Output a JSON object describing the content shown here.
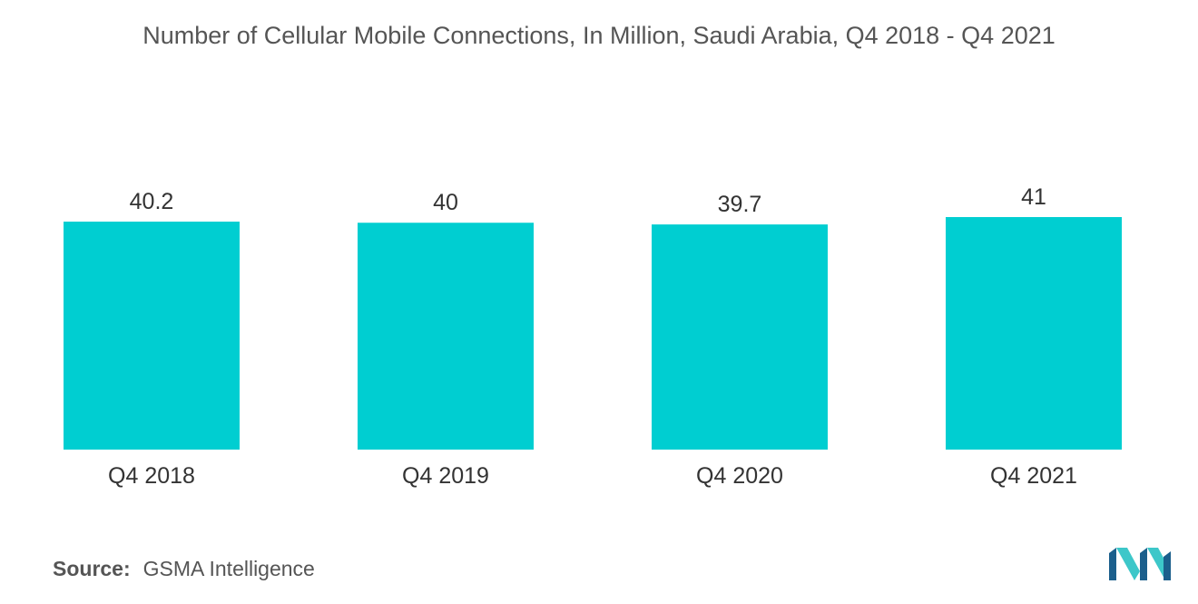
{
  "chart_data": {
    "type": "bar",
    "title": "Number of Cellular Mobile Connections, In Million, Saudi Arabia, Q4 2018 - Q4 2021",
    "categories": [
      "Q4 2018",
      "Q4 2019",
      "Q4 2020",
      "Q4 2021"
    ],
    "values": [
      40.2,
      40,
      39.7,
      41
    ],
    "data_labels": [
      "40.2",
      "40",
      "39.7",
      "41"
    ],
    "xlabel": "",
    "ylabel": "",
    "ylim": [
      0,
      41
    ],
    "grid": false,
    "legend": "none",
    "bar_color": "#00CED1"
  },
  "source": {
    "label": "Source:",
    "text": "GSMA Intelligence"
  },
  "colors": {
    "bar": "#00CED1",
    "logo_dark": "#1B5F8C",
    "logo_light": "#3DC7C9"
  },
  "logo": {
    "icon": "mordor-intelligence-logo-icon"
  }
}
